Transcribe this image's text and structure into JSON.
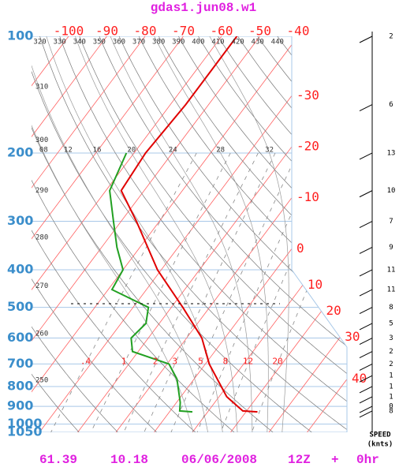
{
  "chart_data": {
    "type": "skew-t",
    "title": "gdas1.jun08.w1",
    "ylim": [
      100,
      1050
    ],
    "yticks": [
      100,
      200,
      300,
      400,
      500,
      600,
      700,
      800,
      900,
      1000,
      1050
    ],
    "xticks": [
      -100,
      -90,
      -80,
      -70,
      -60,
      -50,
      -40,
      -30,
      -20,
      -10,
      0,
      10,
      20,
      30,
      40
    ],
    "theta_ticks": [
      250,
      260,
      270,
      280,
      290,
      300,
      310,
      320,
      330,
      340,
      350,
      360,
      370,
      380,
      390,
      400,
      410,
      420,
      430,
      440
    ],
    "wet_bulb_ticks": [
      {
        "value": 8,
        "label": "08"
      },
      12,
      16,
      20,
      24,
      28,
      32
    ],
    "mixing_ratio_ticks": [
      {
        "value": 0.4,
        "label": ".4"
      },
      1,
      2,
      3,
      5,
      8,
      12,
      20
    ],
    "grid": true,
    "series": [
      {
        "color": "#e00000",
        "pressure": [
          100,
          150,
          200,
          250,
          300,
          400,
          500,
          600,
          700,
          850,
          925,
          930
        ],
        "values": [
          -56,
          -56,
          -57,
          -56,
          -46,
          -31,
          -17,
          -6,
          1,
          12,
          19,
          23
        ]
      },
      {
        "color": "#22a022",
        "pressure": [
          200,
          250,
          300,
          350,
          400,
          450,
          500,
          550,
          600,
          650,
          700,
          765,
          880,
          925,
          930
        ],
        "values": [
          -62,
          -59,
          -52,
          -46,
          -40,
          -39,
          -26,
          -23.5,
          -24.5,
          -21.5,
          -9.5,
          -4.5,
          1,
          2.5,
          6
        ]
      }
    ],
    "winds": {
      "pressure": [
        100,
        150,
        200,
        250,
        300,
        350,
        400,
        450,
        500,
        550,
        600,
        650,
        700,
        750,
        800,
        850,
        900,
        925
      ],
      "speed": [
        2,
        6,
        13,
        10,
        7,
        9,
        11,
        11,
        8,
        5,
        3,
        2,
        2,
        1,
        1,
        1,
        0,
        8
      ],
      "label": "SPEED",
      "units": "(knts)"
    },
    "footer": {
      "lat": 61.39,
      "lon": 10.18,
      "date": "06/06/2008",
      "cycle": "12Z",
      "plus": "+",
      "forecast": "0hr"
    }
  }
}
